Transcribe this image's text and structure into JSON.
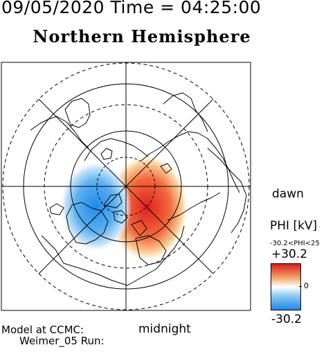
{
  "header": {
    "datetime": "09/05/2020 Time = 04:25:00",
    "hemisphere": "Northern Hemisphere"
  },
  "map": {
    "projection": "polar",
    "labels": {
      "dawn": "dawn",
      "midnight": "midnight"
    },
    "potential_cells": [
      {
        "sign": "positive",
        "color": "#d91e1e"
      },
      {
        "sign": "negative",
        "color": "#1e88e8"
      }
    ]
  },
  "colorbar": {
    "title": "PHI [kV]",
    "range_text": "-30.2<PHI<25",
    "max_label": "+30.2",
    "zero_label": "0",
    "min_label": "-30.2",
    "colors": {
      "max": "#d91e1e",
      "mid": "#ffffff",
      "min": "#1e88e8"
    }
  },
  "footer": {
    "line1": "Model at CCMC:",
    "line2": "Weimer_05 Run:"
  }
}
